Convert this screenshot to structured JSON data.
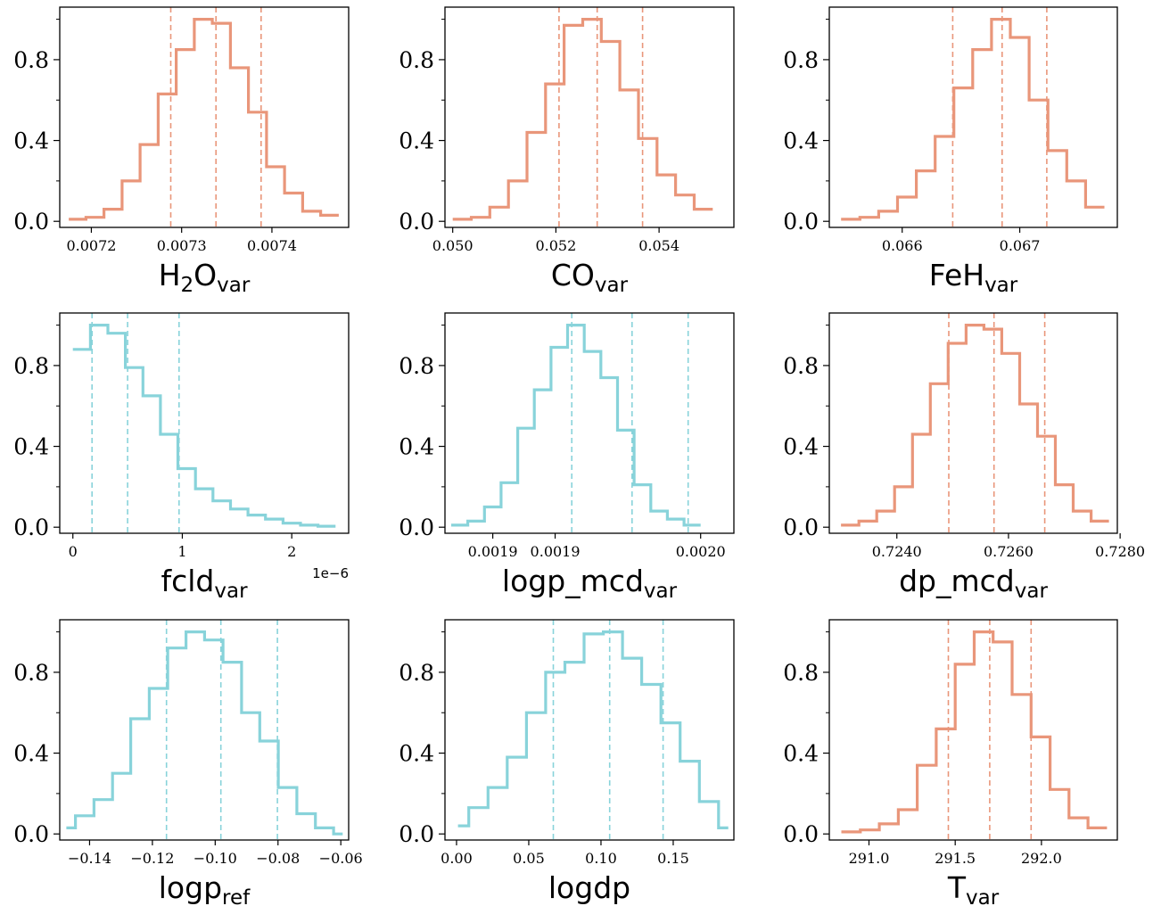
{
  "colors": {
    "salmon": "#e9967a",
    "cyan": "#88d3da"
  },
  "chart_data": [
    {
      "type": "step-histogram",
      "color": "salmon",
      "xlabel": {
        "main": "H",
        "sub1": "2",
        "main2": "O",
        "sub": "var"
      },
      "xlim": [
        0.007165,
        0.007485
      ],
      "ylim": [
        -0.03,
        1.06
      ],
      "xticks": [
        0.0072,
        0.0073,
        0.0074
      ],
      "xticklabels": [
        "0.0072",
        "0.0073",
        "0.0074"
      ],
      "yticks": [
        0.0,
        0.4,
        0.8
      ],
      "yticklabels": [
        "0.0",
        "0.4",
        "0.8"
      ],
      "yminor": [
        0.2,
        0.6,
        1.0
      ],
      "offset_text": "",
      "edges": [
        0.007175,
        0.007194,
        0.007214,
        0.007234,
        0.007254,
        0.007274,
        0.007294,
        0.007314,
        0.007334,
        0.007354,
        0.007374,
        0.007394,
        0.007414,
        0.007434,
        0.007454,
        0.007474
      ],
      "values": [
        0.01,
        0.02,
        0.06,
        0.2,
        0.38,
        0.63,
        0.85,
        1.0,
        0.98,
        0.76,
        0.54,
        0.27,
        0.14,
        0.05,
        0.03
      ],
      "vlines": [
        0.007288,
        0.007338,
        0.007388
      ]
    },
    {
      "type": "step-histogram",
      "color": "salmon",
      "xlabel": {
        "main": "CO",
        "sub": "var"
      },
      "xlim": [
        0.04985,
        0.05545
      ],
      "ylim": [
        -0.03,
        1.06
      ],
      "xticks": [
        0.05,
        0.052,
        0.054
      ],
      "xticklabels": [
        "0.050",
        "0.052",
        "0.054"
      ],
      "yticks": [
        0.0,
        0.4,
        0.8
      ],
      "yticklabels": [
        "0.0",
        "0.4",
        "0.8"
      ],
      "yminor": [
        0.2,
        0.6,
        1.0
      ],
      "offset_text": "",
      "edges": [
        0.05,
        0.05036,
        0.05072,
        0.05108,
        0.05144,
        0.0518,
        0.05216,
        0.05252,
        0.05288,
        0.05324,
        0.0536,
        0.05396,
        0.05432,
        0.05468,
        0.05504
      ],
      "values": [
        0.01,
        0.02,
        0.07,
        0.2,
        0.44,
        0.68,
        0.97,
        1.0,
        0.89,
        0.65,
        0.41,
        0.23,
        0.13,
        0.06
      ],
      "vlines": [
        0.05206,
        0.0528,
        0.05368
      ]
    },
    {
      "type": "step-histogram",
      "color": "salmon",
      "xlabel": {
        "main": "FeH",
        "sub": "var"
      },
      "xlim": [
        0.06538,
        0.06783
      ],
      "ylim": [
        -0.03,
        1.06
      ],
      "xticks": [
        0.066,
        0.067
      ],
      "xticklabels": [
        "0.066",
        "0.067"
      ],
      "yticks": [
        0.0,
        0.4,
        0.8
      ],
      "yticklabels": [
        "0.0",
        "0.4",
        "0.8"
      ],
      "yminor": [
        0.2,
        0.6,
        1.0
      ],
      "offset_text": "",
      "edges": [
        0.06548,
        0.06564,
        0.0658,
        0.06596,
        0.06612,
        0.06628,
        0.06644,
        0.0666,
        0.06676,
        0.06692,
        0.06708,
        0.06724,
        0.0674,
        0.06756,
        0.06772
      ],
      "values": [
        0.01,
        0.02,
        0.05,
        0.12,
        0.25,
        0.42,
        0.66,
        0.85,
        1.0,
        0.91,
        0.6,
        0.35,
        0.2,
        0.07
      ],
      "vlines": [
        0.06643,
        0.06685,
        0.06723
      ]
    },
    {
      "type": "step-histogram",
      "color": "cyan",
      "xlabel": {
        "main": "fcld",
        "sub": "var"
      },
      "xlim": [
        -1.2e-07,
        2.52e-06
      ],
      "ylim": [
        -0.03,
        1.06
      ],
      "xticks": [
        0,
        1e-06,
        2e-06
      ],
      "xticklabels": [
        "0",
        "1",
        "2"
      ],
      "yticks": [
        0.0,
        0.4,
        0.8
      ],
      "yticklabels": [
        "0.0",
        "0.4",
        "0.8"
      ],
      "yminor": [
        0.2,
        0.6,
        1.0
      ],
      "offset_text": "1e−6",
      "edges": [
        0.0,
        1.6e-07,
        3.2e-07,
        4.8e-07,
        6.4e-07,
        8e-07,
        9.6e-07,
        1.12e-06,
        1.28e-06,
        1.44e-06,
        1.6e-06,
        1.76e-06,
        1.92e-06,
        2.08e-06,
        2.24e-06,
        2.4e-06
      ],
      "values": [
        0.88,
        1.0,
        0.96,
        0.79,
        0.65,
        0.46,
        0.29,
        0.19,
        0.13,
        0.09,
        0.06,
        0.04,
        0.02,
        0.01,
        0.005
      ],
      "vlines": [
        1.75e-07,
        5e-07,
        9.7e-07
      ]
    },
    {
      "type": "step-histogram",
      "color": "cyan",
      "xlabel": {
        "main": "logp_mcd",
        "sub": "var"
      },
      "xlim": [
        0.001877,
        0.002016
      ],
      "ylim": [
        -0.03,
        1.06
      ],
      "xticks": [
        0.0019,
        0.00193,
        0.002
      ],
      "xticklabels": [
        "0.0019",
        "0.0019",
        "0.0020"
      ],
      "yticks": [
        0.0,
        0.4,
        0.8
      ],
      "yticklabels": [
        "0.0",
        "0.4",
        "0.8"
      ],
      "yminor": [
        0.2,
        0.6,
        1.0
      ],
      "offset_text": "",
      "edges": [
        0.00188,
        0.001888,
        0.001896,
        0.001904,
        0.001912,
        0.00192,
        0.001928,
        0.001936,
        0.001944,
        0.001952,
        0.00196,
        0.001968,
        0.001976,
        0.001984,
        0.001992,
        0.002
      ],
      "values": [
        0.01,
        0.03,
        0.1,
        0.22,
        0.49,
        0.68,
        0.89,
        1.0,
        0.87,
        0.74,
        0.48,
        0.21,
        0.08,
        0.04,
        0.01
      ],
      "vlines": [
        0.001938,
        0.001967,
        0.001994
      ]
    },
    {
      "type": "step-histogram",
      "color": "salmon",
      "xlabel": {
        "main": "dp_mcd",
        "sub": "var"
      },
      "xlim": [
        0.72279,
        0.72795
      ],
      "ylim": [
        -0.03,
        1.06
      ],
      "xticks": [
        0.724,
        0.726,
        0.728
      ],
      "xticklabels": [
        "0.7240",
        "0.7260",
        "0.7280"
      ],
      "yticks": [
        0.0,
        0.4,
        0.8
      ],
      "yticklabels": [
        "0.0",
        "0.4",
        "0.8"
      ],
      "yminor": [
        0.2,
        0.6,
        1.0
      ],
      "offset_text": "",
      "edges": [
        0.723,
        0.72332,
        0.72364,
        0.72396,
        0.72428,
        0.7246,
        0.72492,
        0.72524,
        0.72556,
        0.72588,
        0.7262,
        0.72652,
        0.72684,
        0.72716,
        0.72748,
        0.7278
      ],
      "values": [
        0.01,
        0.03,
        0.08,
        0.2,
        0.46,
        0.71,
        0.91,
        1.0,
        0.98,
        0.86,
        0.61,
        0.45,
        0.21,
        0.08,
        0.03
      ],
      "vlines": [
        0.72493,
        0.72574,
        0.72665
      ]
    },
    {
      "type": "step-histogram",
      "color": "cyan",
      "xlabel": {
        "main": "logp",
        "sub": "ref"
      },
      "xlim": [
        -0.1495,
        -0.0575
      ],
      "ylim": [
        -0.03,
        1.06
      ],
      "xticks": [
        -0.14,
        -0.12,
        -0.1,
        -0.08,
        -0.06
      ],
      "xticklabels": [
        "−0.14",
        "−0.12",
        "−0.10",
        "−0.08",
        "−0.06"
      ],
      "yticks": [
        0.0,
        0.4,
        0.8
      ],
      "yticklabels": [
        "0.0",
        "0.4",
        "0.8"
      ],
      "yminor": [
        0.2,
        0.6,
        1.0
      ],
      "offset_text": "",
      "edges": [
        -0.1474,
        -0.1445,
        -0.1386,
        -0.1327,
        -0.1269,
        -0.121,
        -0.1151,
        -0.1093,
        -0.1034,
        -0.0975,
        -0.0916,
        -0.0858,
        -0.0799,
        -0.074,
        -0.0681,
        -0.0623,
        -0.0594
      ],
      "values": [
        0.03,
        0.09,
        0.17,
        0.3,
        0.57,
        0.72,
        0.92,
        1.0,
        0.96,
        0.85,
        0.6,
        0.46,
        0.23,
        0.1,
        0.03,
        0.0
      ],
      "vlines": [
        -0.1155,
        -0.0982,
        -0.0802
      ]
    },
    {
      "type": "step-histogram",
      "color": "cyan",
      "xlabel": {
        "main": "logdp",
        "sub": ""
      },
      "xlim": [
        -0.008,
        0.192
      ],
      "ylim": [
        -0.03,
        1.06
      ],
      "xticks": [
        0.0,
        0.05,
        0.1,
        0.15
      ],
      "xticklabels": [
        "0.00",
        "0.05",
        "0.10",
        "0.15"
      ],
      "yticks": [
        0.0,
        0.4,
        0.8
      ],
      "yticklabels": [
        "0.0",
        "0.4",
        "0.8"
      ],
      "yminor": [
        0.2,
        0.6,
        1.0
      ],
      "offset_text": "",
      "edges": [
        0.001,
        0.0085,
        0.0218,
        0.0351,
        0.0484,
        0.0617,
        0.075,
        0.0883,
        0.1016,
        0.1149,
        0.1282,
        0.1415,
        0.1548,
        0.1681,
        0.1814,
        0.1881
      ],
      "values": [
        0.04,
        0.13,
        0.23,
        0.38,
        0.6,
        0.8,
        0.85,
        0.99,
        1.0,
        0.87,
        0.74,
        0.55,
        0.36,
        0.16,
        0.03
      ],
      "vlines": [
        0.067,
        0.106,
        0.143
      ]
    },
    {
      "type": "step-histogram",
      "color": "salmon",
      "xlabel": {
        "main": "T",
        "sub": "var"
      },
      "xlim": [
        290.77,
        292.44
      ],
      "ylim": [
        -0.03,
        1.06
      ],
      "xticks": [
        291.0,
        291.5,
        292.0
      ],
      "xticklabels": [
        "291.0",
        "291.5",
        "292.0"
      ],
      "yticks": [
        0.0,
        0.4,
        0.8
      ],
      "yticklabels": [
        "0.0",
        "0.4",
        "0.8"
      ],
      "yminor": [
        0.2,
        0.6,
        1.0
      ],
      "offset_text": "",
      "edges": [
        290.84,
        290.95,
        291.06,
        291.17,
        291.28,
        291.39,
        291.5,
        291.61,
        291.72,
        291.83,
        291.94,
        292.05,
        292.16,
        292.27,
        292.38
      ],
      "values": [
        0.01,
        0.02,
        0.05,
        0.12,
        0.34,
        0.52,
        0.84,
        1.0,
        0.95,
        0.69,
        0.48,
        0.22,
        0.08,
        0.03
      ],
      "vlines": [
        291.46,
        291.7,
        291.94
      ]
    }
  ]
}
